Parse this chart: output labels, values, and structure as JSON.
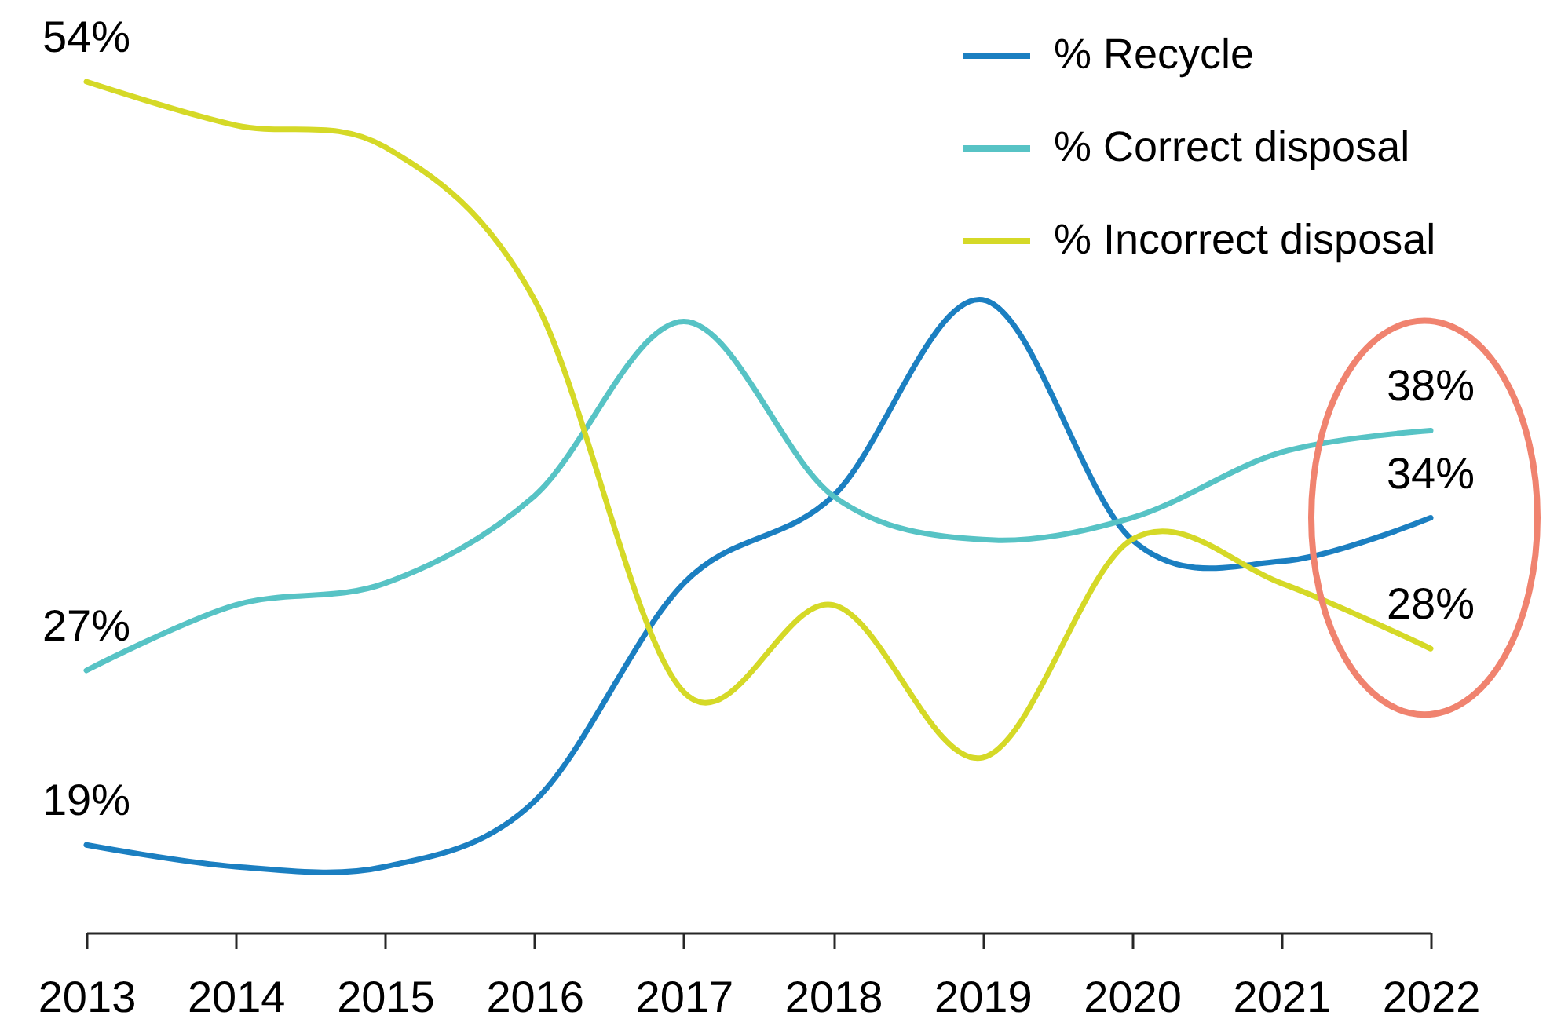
{
  "chart_data": {
    "type": "line",
    "categories": [
      "2013",
      "2014",
      "2015",
      "2016",
      "2017",
      "2018",
      "2019",
      "2020",
      "2021",
      "2022"
    ],
    "series": [
      {
        "name": "% Recycle",
        "color": "#1b7fc1",
        "values": [
          19,
          18,
          18,
          21,
          31,
          35,
          44,
          33,
          32,
          34
        ],
        "value_labels": [
          "19%",
          null,
          null,
          null,
          null,
          null,
          null,
          null,
          null,
          "34%"
        ]
      },
      {
        "name": "% Correct disposal",
        "color": "#57c3c5",
        "values": [
          27,
          30,
          31,
          35,
          43,
          35,
          33,
          34,
          37,
          38
        ],
        "value_labels": [
          "27%",
          null,
          null,
          null,
          null,
          null,
          null,
          null,
          null,
          "38%"
        ]
      },
      {
        "name": "% Incorrect disposal",
        "color": "#d5d927",
        "values": [
          54,
          52,
          51,
          44,
          26,
          30,
          23,
          33,
          31,
          28
        ],
        "value_labels": [
          "54%",
          null,
          null,
          null,
          null,
          null,
          null,
          null,
          null,
          "28%"
        ]
      }
    ],
    "tick_labels": "x",
    "legend": "top right",
    "line_style": "solid"
  }
}
